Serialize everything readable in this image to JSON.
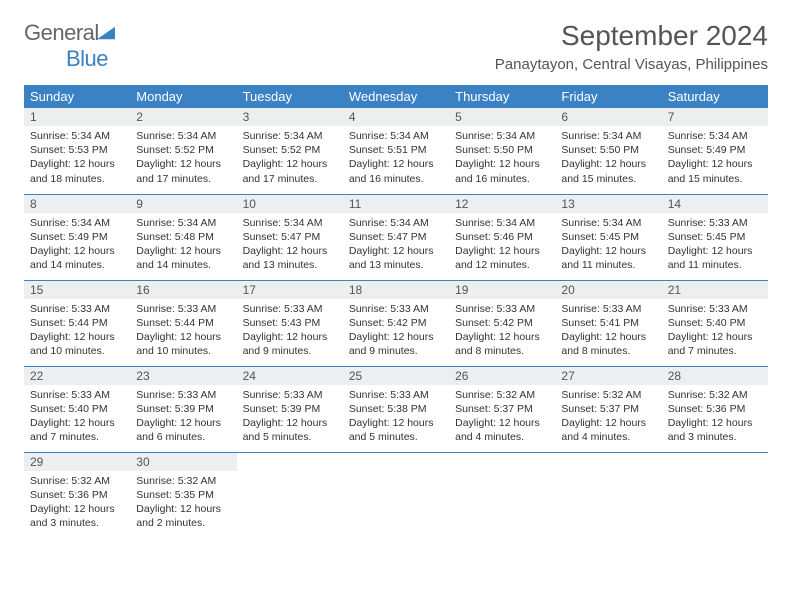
{
  "logo": {
    "general": "General",
    "blue": "Blue"
  },
  "title": "September 2024",
  "location": "Panaytayon, Central Visayas, Philippines",
  "colors": {
    "header_bg": "#3b82c4",
    "header_text": "#ffffff",
    "daynum_bg": "#eceeef",
    "border": "#3b82c4",
    "text": "#333333",
    "logo_gray": "#666666",
    "logo_blue": "#3b82c4"
  },
  "weekdays": [
    "Sunday",
    "Monday",
    "Tuesday",
    "Wednesday",
    "Thursday",
    "Friday",
    "Saturday"
  ],
  "rows": [
    [
      {
        "n": "1",
        "sr": "5:34 AM",
        "ss": "5:53 PM",
        "dl": "12 hours and 18 minutes."
      },
      {
        "n": "2",
        "sr": "5:34 AM",
        "ss": "5:52 PM",
        "dl": "12 hours and 17 minutes."
      },
      {
        "n": "3",
        "sr": "5:34 AM",
        "ss": "5:52 PM",
        "dl": "12 hours and 17 minutes."
      },
      {
        "n": "4",
        "sr": "5:34 AM",
        "ss": "5:51 PM",
        "dl": "12 hours and 16 minutes."
      },
      {
        "n": "5",
        "sr": "5:34 AM",
        "ss": "5:50 PM",
        "dl": "12 hours and 16 minutes."
      },
      {
        "n": "6",
        "sr": "5:34 AM",
        "ss": "5:50 PM",
        "dl": "12 hours and 15 minutes."
      },
      {
        "n": "7",
        "sr": "5:34 AM",
        "ss": "5:49 PM",
        "dl": "12 hours and 15 minutes."
      }
    ],
    [
      {
        "n": "8",
        "sr": "5:34 AM",
        "ss": "5:49 PM",
        "dl": "12 hours and 14 minutes."
      },
      {
        "n": "9",
        "sr": "5:34 AM",
        "ss": "5:48 PM",
        "dl": "12 hours and 14 minutes."
      },
      {
        "n": "10",
        "sr": "5:34 AM",
        "ss": "5:47 PM",
        "dl": "12 hours and 13 minutes."
      },
      {
        "n": "11",
        "sr": "5:34 AM",
        "ss": "5:47 PM",
        "dl": "12 hours and 13 minutes."
      },
      {
        "n": "12",
        "sr": "5:34 AM",
        "ss": "5:46 PM",
        "dl": "12 hours and 12 minutes."
      },
      {
        "n": "13",
        "sr": "5:34 AM",
        "ss": "5:45 PM",
        "dl": "12 hours and 11 minutes."
      },
      {
        "n": "14",
        "sr": "5:33 AM",
        "ss": "5:45 PM",
        "dl": "12 hours and 11 minutes."
      }
    ],
    [
      {
        "n": "15",
        "sr": "5:33 AM",
        "ss": "5:44 PM",
        "dl": "12 hours and 10 minutes."
      },
      {
        "n": "16",
        "sr": "5:33 AM",
        "ss": "5:44 PM",
        "dl": "12 hours and 10 minutes."
      },
      {
        "n": "17",
        "sr": "5:33 AM",
        "ss": "5:43 PM",
        "dl": "12 hours and 9 minutes."
      },
      {
        "n": "18",
        "sr": "5:33 AM",
        "ss": "5:42 PM",
        "dl": "12 hours and 9 minutes."
      },
      {
        "n": "19",
        "sr": "5:33 AM",
        "ss": "5:42 PM",
        "dl": "12 hours and 8 minutes."
      },
      {
        "n": "20",
        "sr": "5:33 AM",
        "ss": "5:41 PM",
        "dl": "12 hours and 8 minutes."
      },
      {
        "n": "21",
        "sr": "5:33 AM",
        "ss": "5:40 PM",
        "dl": "12 hours and 7 minutes."
      }
    ],
    [
      {
        "n": "22",
        "sr": "5:33 AM",
        "ss": "5:40 PM",
        "dl": "12 hours and 7 minutes."
      },
      {
        "n": "23",
        "sr": "5:33 AM",
        "ss": "5:39 PM",
        "dl": "12 hours and 6 minutes."
      },
      {
        "n": "24",
        "sr": "5:33 AM",
        "ss": "5:39 PM",
        "dl": "12 hours and 5 minutes."
      },
      {
        "n": "25",
        "sr": "5:33 AM",
        "ss": "5:38 PM",
        "dl": "12 hours and 5 minutes."
      },
      {
        "n": "26",
        "sr": "5:32 AM",
        "ss": "5:37 PM",
        "dl": "12 hours and 4 minutes."
      },
      {
        "n": "27",
        "sr": "5:32 AM",
        "ss": "5:37 PM",
        "dl": "12 hours and 4 minutes."
      },
      {
        "n": "28",
        "sr": "5:32 AM",
        "ss": "5:36 PM",
        "dl": "12 hours and 3 minutes."
      }
    ],
    [
      {
        "n": "29",
        "sr": "5:32 AM",
        "ss": "5:36 PM",
        "dl": "12 hours and 3 minutes."
      },
      {
        "n": "30",
        "sr": "5:32 AM",
        "ss": "5:35 PM",
        "dl": "12 hours and 2 minutes."
      },
      null,
      null,
      null,
      null,
      null
    ]
  ],
  "labels": {
    "sunrise": "Sunrise: ",
    "sunset": "Sunset: ",
    "daylight": "Daylight: "
  }
}
